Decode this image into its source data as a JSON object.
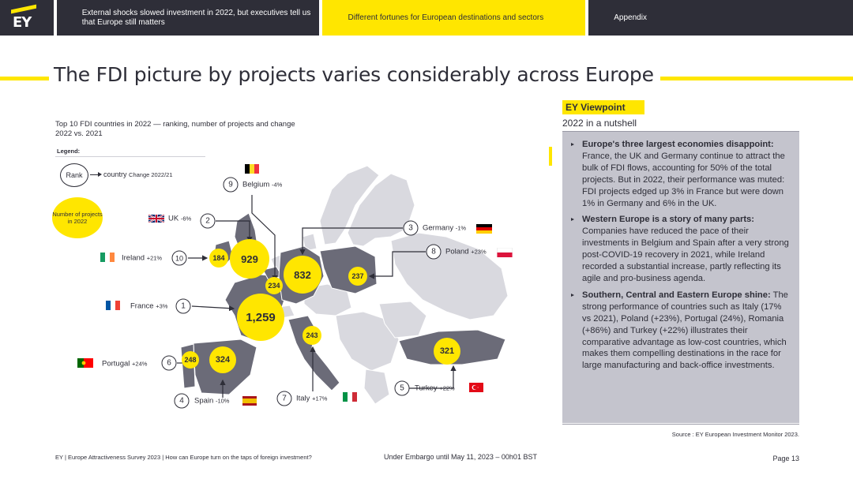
{
  "nav": {
    "logo_text": "EY",
    "tabs": [
      {
        "label": "External shocks slowed investment in 2022, but executives tell us that Europe still matters"
      },
      {
        "label": "Different fortunes for European destinations and sectors"
      },
      {
        "label": "Appendix"
      }
    ]
  },
  "title": "The FDI picture by projects varies considerably across Europe",
  "chart_caption": "Top 10 FDI countries in 2022 — ranking, number of projects and change 2022 vs. 2021",
  "legend": {
    "label": "Legend:",
    "rank": "Rank",
    "country": "country",
    "change": "Change 2022/21",
    "bubble": "Number of projects in 2022"
  },
  "chart_data": {
    "type": "table",
    "rows": [
      {
        "rank": "1",
        "country": "France",
        "change": "+3%",
        "projects": "1,259"
      },
      {
        "rank": "2",
        "country": "UK",
        "change": "-6%",
        "projects": "929"
      },
      {
        "rank": "3",
        "country": "Germany",
        "change": "-1%",
        "projects": "832"
      },
      {
        "rank": "4",
        "country": "Spain",
        "change": "-10%",
        "projects": "324"
      },
      {
        "rank": "5",
        "country": "Turkey",
        "change": "+22%",
        "projects": "321"
      },
      {
        "rank": "6",
        "country": "Portugal",
        "change": "+24%",
        "projects": "248"
      },
      {
        "rank": "7",
        "country": "Italy",
        "change": "+17%",
        "projects": "243"
      },
      {
        "rank": "8",
        "country": "Poland",
        "change": "+23%",
        "projects": "237"
      },
      {
        "rank": "9",
        "country": "Belgium",
        "change": "-4%",
        "projects": "234"
      },
      {
        "rank": "10",
        "country": "Ireland",
        "change": "+21%",
        "projects": "184"
      }
    ]
  },
  "viewpoint": {
    "tag": "EY Viewpoint",
    "subtitle": "2022 in a nutshell",
    "items": [
      {
        "bold": "Europe's three largest economies disappoint:",
        "text": " France, the UK and Germany continue to attract the bulk of FDI flows, accounting for 50% of the total projects. But in 2022, their performance was muted: FDI projects edged up 3% in France but were down 1% in Germany and 6% in the UK."
      },
      {
        "bold": "Western Europe is a story of many parts:",
        "text": " Companies have reduced the pace of their investments in Belgium and Spain after a very strong post-COVID-19 recovery in 2021, while Ireland recorded a substantial increase, partly reflecting its agile and pro-business agenda."
      },
      {
        "bold": "Southern, Central and Eastern Europe shine:",
        "text": " The strong performance of countries such as Italy (17% vs 2021), Poland (+23%), Portugal (24%), Romania (+86%) and Turkey (+22%) illustrates their comparative advantage as low-cost countries, which makes them compelling destinations in the race for large manufacturing and back-office investments."
      }
    ]
  },
  "source": "Source : EY European Investment Monitor 2023.",
  "footer": {
    "left": "EY | Europe Attractiveness Survey 2023 | How can Europe turn on the taps of foreign investment?",
    "mid": "Under Embargo until May 11, 2023 – 00h01 BST",
    "page": "Page 13"
  },
  "colors": {
    "yellow": "#ffe600",
    "dark": "#2e2e38",
    "map_highlight": "#6b6b78",
    "map_base": "#d9d9df",
    "panel": "#c4c4cd"
  }
}
